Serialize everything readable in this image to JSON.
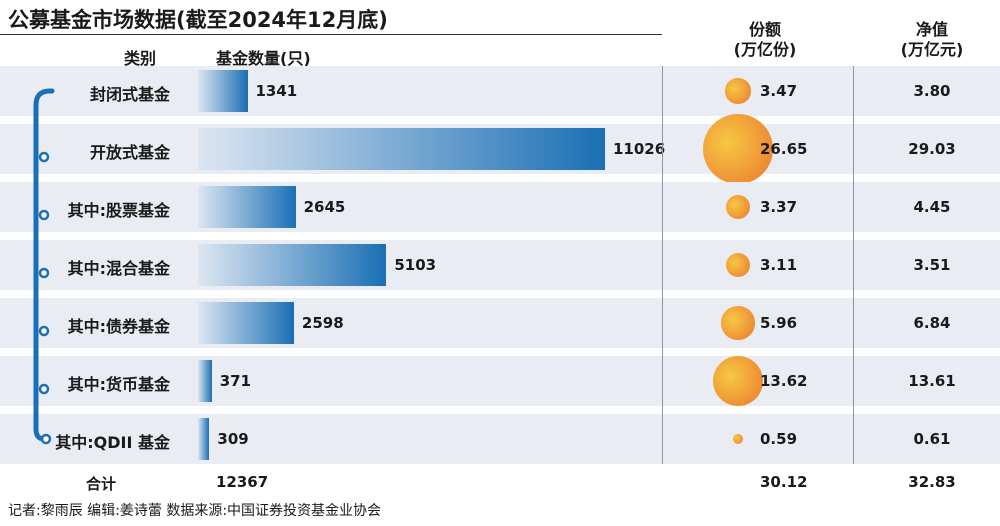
{
  "title": "公募基金市场数据(截至2024年12月底)",
  "headers": {
    "category": "类别",
    "count": "基金数量(只)",
    "shares_line1": "份额",
    "shares_line2": "(万亿份)",
    "nav_line1": "净值",
    "nav_line2": "(万亿元)"
  },
  "total": {
    "label": "合计",
    "count": "12367",
    "shares": "30.12",
    "nav": "32.83"
  },
  "footer": "记者:黎雨辰   编辑:姜诗蕾   数据来源:中国证券投资基金业协会",
  "colors": {
    "bar_light": "#dde6f1",
    "bar_dark": "#1a6fb5",
    "bracket": "#1a6fb5",
    "row_bg": "#e9edf3"
  },
  "chart_data": {
    "type": "bar",
    "title": "公募基金市场数据(截至2024年12月底)",
    "categories": [
      "封闭式基金",
      "开放式基金",
      "其中:股票基金",
      "其中:混合基金",
      "其中:债券基金",
      "其中:货币基金",
      "其中:QDII 基金"
    ],
    "series": [
      {
        "name": "基金数量(只)",
        "values": [
          1341,
          11026,
          2645,
          5103,
          2598,
          371,
          309
        ]
      },
      {
        "name": "份额(万亿份)",
        "values": [
          3.47,
          26.65,
          3.37,
          3.11,
          5.96,
          13.62,
          0.59
        ]
      },
      {
        "name": "净值(万亿元)",
        "values": [
          3.8,
          29.03,
          4.45,
          3.51,
          6.84,
          13.61,
          0.61
        ]
      }
    ],
    "count_labels": [
      "1341",
      "11026",
      "2645",
      "5103",
      "2598",
      "371",
      "309"
    ],
    "share_labels": [
      "3.47",
      "26.65",
      "3.37",
      "3.11",
      "5.96",
      "13.62",
      "0.59"
    ],
    "nav_labels": [
      "3.80",
      "29.03",
      "4.45",
      "3.51",
      "6.84",
      "13.61",
      "0.61"
    ]
  }
}
